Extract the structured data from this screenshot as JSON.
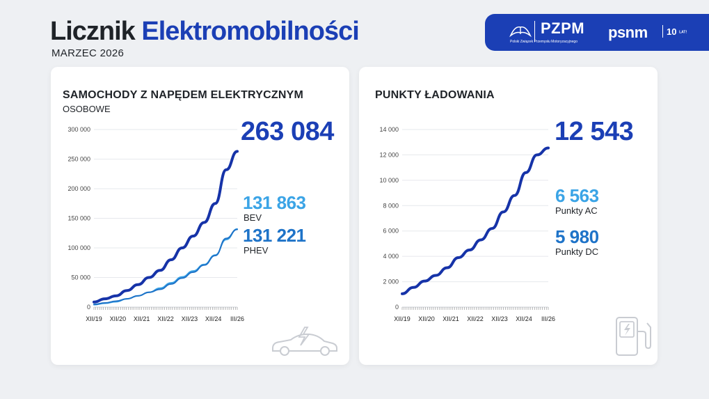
{
  "header": {
    "title_part1": "Licznik",
    "title_part2": "Elektromobilności",
    "date": "MARZEC 2026"
  },
  "logos": {
    "pzpm": "PZPM",
    "pzpm_sub": "Polski Związek Przemysłu Motoryzacyjnego",
    "psnm": "psnm",
    "psnm_years": "10",
    "psnm_years_suffix": "LAT!"
  },
  "colors": {
    "accent": "#1b3fb5",
    "dark_blue": "#1633a8",
    "light_blue": "#3ba4e6",
    "mid_blue": "#1e73c8"
  },
  "cars": {
    "title": "SAMOCHODY Z NAPĘDEM ELEKTRYCZNYM",
    "subtitle": "OSOBOWE",
    "total": "263 084",
    "bev_value": "131 863",
    "bev_label": "BEV",
    "phev_value": "131 221",
    "phev_label": "PHEV",
    "icon": "electric-car-icon"
  },
  "charging": {
    "title": "PUNKTY ŁADOWANIA",
    "total": "12 543",
    "ac_value": "6 563",
    "ac_label": "Punkty AC",
    "dc_value": "5 980",
    "dc_label": "Punkty DC",
    "icon": "charging-station-icon"
  },
  "chart_data": [
    {
      "type": "line",
      "x_ticks": [
        "XII/19",
        "XII/20",
        "XII/21",
        "XII/22",
        "XII/23",
        "XII/24",
        "III/26"
      ],
      "x": [
        "XII/19",
        "VI/20",
        "XII/20",
        "VI/21",
        "XII/21",
        "VI/22",
        "XII/22",
        "VI/23",
        "XII/23",
        "VI/24",
        "XII/24",
        "VI/25",
        "XII/25",
        "III/26"
      ],
      "ylim": [
        0,
        300000
      ],
      "y_ticks": [
        "0",
        "50 000",
        "100 000",
        "150 000",
        "200 000",
        "250 000",
        "300 000"
      ],
      "grid": true,
      "series": [
        {
          "values": [
            8500,
            14000,
            19000,
            28000,
            38000,
            50000,
            62000,
            80000,
            100000,
            120000,
            143000,
            175000,
            232000,
            263084
          ],
          "color": "#1633a8"
        },
        {
          "values": [
            4000,
            6500,
            9000,
            14000,
            19000,
            25000,
            32000,
            41000,
            51000,
            61000,
            72000,
            88000,
            114000,
            131863
          ],
          "color": "#3ba4e6"
        },
        {
          "values": [
            4500,
            7000,
            10000,
            14000,
            19000,
            25000,
            30000,
            39000,
            49000,
            59000,
            71000,
            87000,
            116000,
            131221
          ],
          "color": "#1e73c8"
        }
      ]
    },
    {
      "type": "line",
      "x_ticks": [
        "XII/19",
        "XII/20",
        "XII/21",
        "XII/22",
        "XII/23",
        "XII/24",
        "III/26"
      ],
      "x": [
        "XII/19",
        "VI/20",
        "XII/20",
        "VI/21",
        "XII/21",
        "VI/22",
        "XII/22",
        "VI/23",
        "XII/23",
        "VI/24",
        "XII/24",
        "VI/25",
        "XII/25",
        "III/26"
      ],
      "ylim": [
        0,
        14000
      ],
      "y_ticks": [
        "0",
        "2 000",
        "4 000",
        "6 000",
        "8 000",
        "10 000",
        "12 000",
        "14 000"
      ],
      "grid": true,
      "series": [
        {
          "values": [
            1050,
            1550,
            2050,
            2500,
            3100,
            3900,
            4500,
            5300,
            6200,
            7500,
            8800,
            10600,
            12000,
            12543
          ],
          "color": "#1633a8"
        }
      ]
    }
  ]
}
